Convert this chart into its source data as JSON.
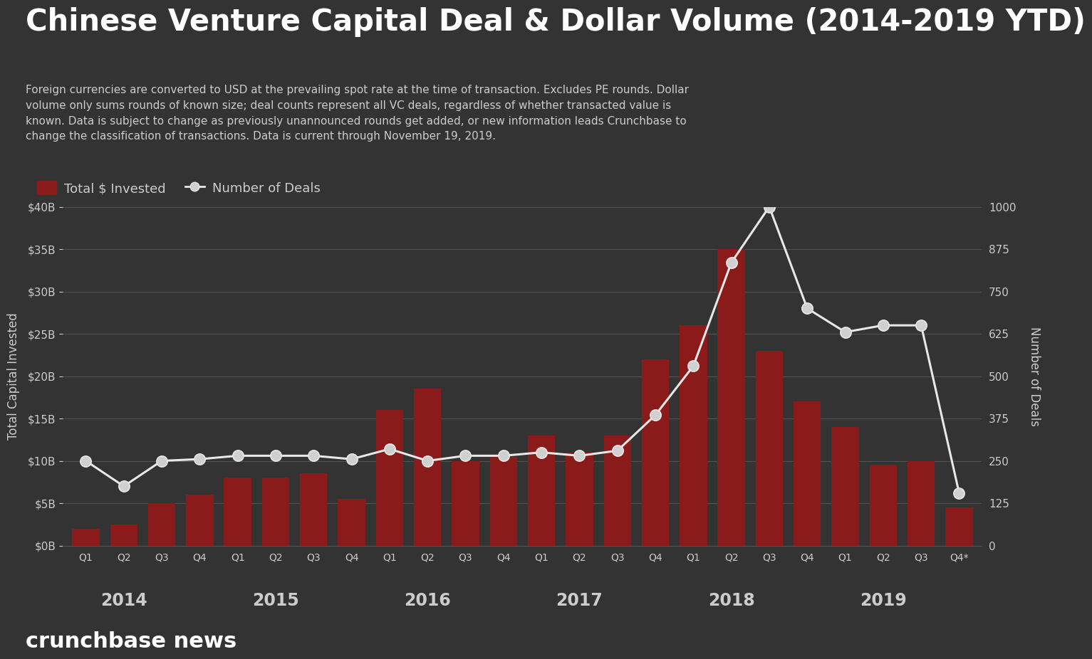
{
  "title": "Chinese Venture Capital Deal & Dollar Volume (2014-2019 YTD)",
  "subtitle": "Foreign currencies are converted to USD at the prevailing spot rate at the time of transaction. Excludes PE rounds. Dollar\nvolume only sums rounds of known size; deal counts represent all VC deals, regardless of whether transacted value is\nknown. Data is subject to change as previously unannounced rounds get added, or new information leads Crunchbase to\nchange the classification of transactions. Data is current through November 19, 2019.",
  "source": "crunchbase news",
  "background_color": "#333333",
  "text_color": "#cccccc",
  "bar_color": "#8b1a1a",
  "line_color": "#e8e8e8",
  "marker_face_color": "#d0d0d0",
  "quarter_labels": [
    "Q1",
    "Q2",
    "Q3",
    "Q4",
    "Q1",
    "Q2",
    "Q3",
    "Q4",
    "Q1",
    "Q2",
    "Q3",
    "Q4",
    "Q1",
    "Q2",
    "Q3",
    "Q4",
    "Q1",
    "Q2",
    "Q3",
    "Q4",
    "Q1",
    "Q2",
    "Q3",
    "Q4*"
  ],
  "year_labels": [
    "2014",
    "2015",
    "2016",
    "2017",
    "2018",
    "2019"
  ],
  "year_centers": [
    1.5,
    5.5,
    9.5,
    13.5,
    17.5,
    21.5
  ],
  "year_boundaries": [
    3.5,
    7.5,
    11.5,
    15.5,
    19.5
  ],
  "bar_values_B": [
    2.0,
    2.5,
    5.0,
    6.0,
    8.0,
    8.0,
    8.5,
    5.5,
    16.0,
    18.5,
    10.0,
    10.5,
    13.0,
    11.0,
    13.0,
    22.0,
    26.0,
    35.0,
    23.0,
    17.0,
    14.0,
    9.5,
    10.0,
    4.5
  ],
  "deal_counts": [
    250,
    175,
    250,
    255,
    265,
    265,
    265,
    255,
    285,
    250,
    265,
    265,
    275,
    265,
    280,
    385,
    530,
    835,
    1000,
    700,
    630,
    650,
    650,
    155
  ],
  "ylim_left": [
    0,
    40
  ],
  "ylim_right": [
    0,
    1000
  ],
  "yticks_left_vals": [
    0,
    5,
    10,
    15,
    20,
    25,
    30,
    35,
    40
  ],
  "ytick_left_labels": [
    "$0B",
    "$5B",
    "$10B",
    "$15B",
    "$20B",
    "$25B",
    "$30B",
    "$35B",
    "$40B"
  ],
  "yticks_right_vals": [
    0,
    125,
    250,
    375,
    500,
    625,
    750,
    875,
    1000
  ],
  "ytick_right_labels": [
    "0",
    "125",
    "250",
    "375",
    "500",
    "625",
    "750",
    "875",
    "1000"
  ],
  "ylabel_left": "Total Capital Invested",
  "ylabel_right": "Number of Deals",
  "legend_bar_label": "Total $ Invested",
  "legend_line_label": "Number of Deals",
  "grid_color": "#555555",
  "title_fontsize": 30,
  "subtitle_fontsize": 11,
  "ylabel_fontsize": 12,
  "tick_fontsize": 11,
  "quarter_fontsize": 10,
  "year_fontsize": 17,
  "source_fontsize": 22,
  "legend_fontsize": 13,
  "bar_width": 0.72
}
